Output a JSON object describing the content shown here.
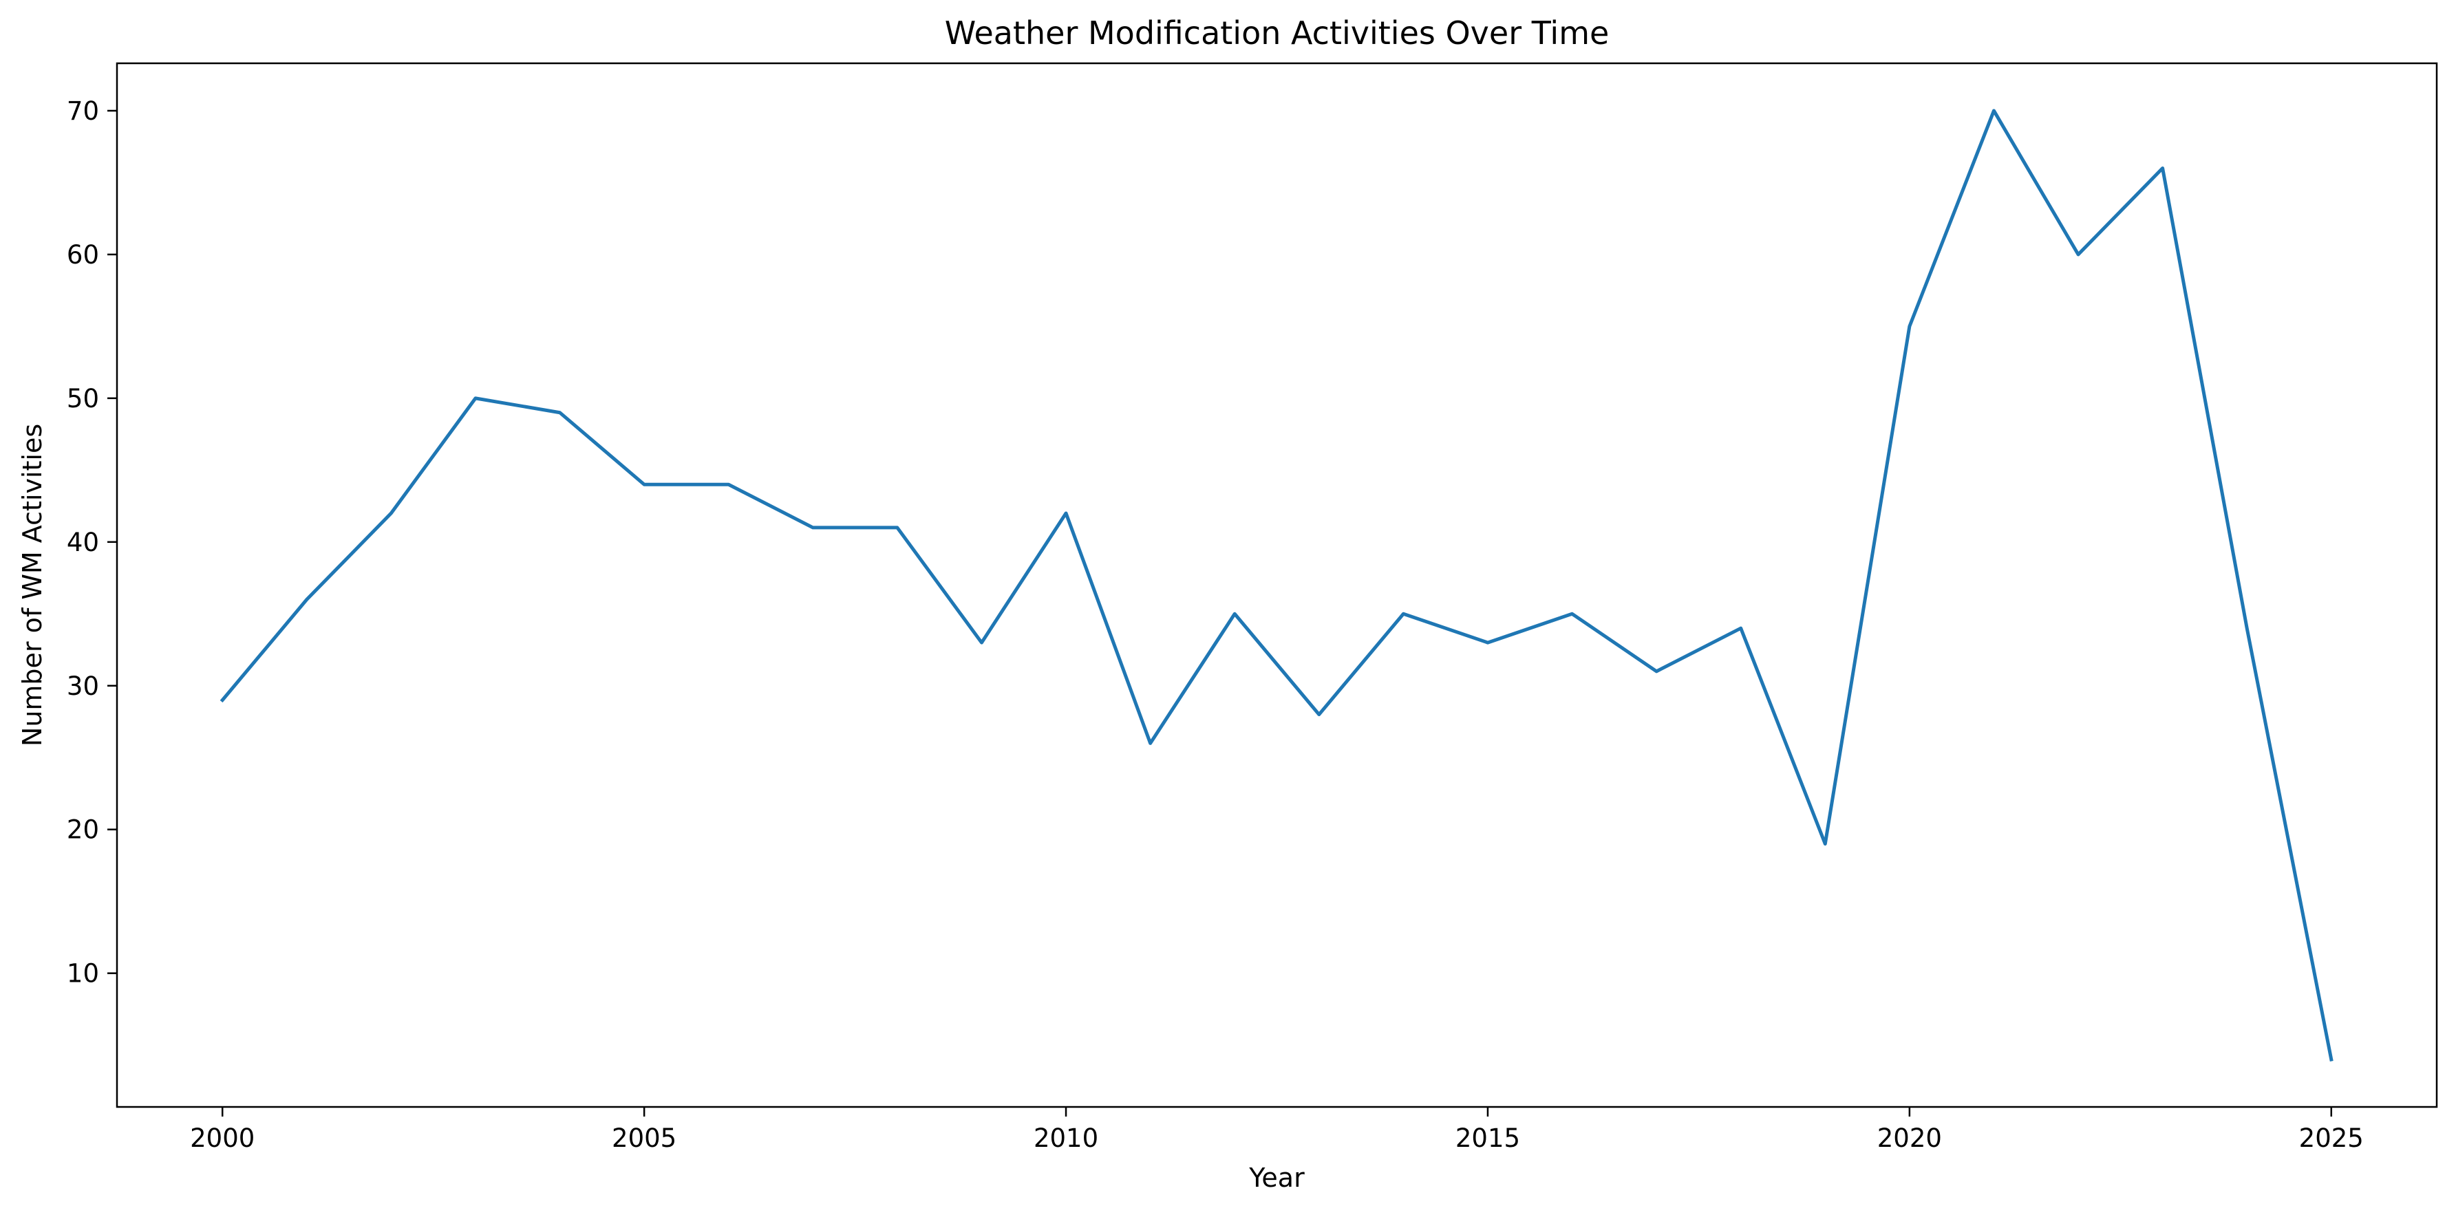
{
  "chart_data": {
    "type": "line",
    "title": "Weather Modification Activities Over Time",
    "xlabel": "Year",
    "ylabel": "Number of WM Activities",
    "x": [
      2000,
      2001,
      2002,
      2003,
      2004,
      2005,
      2006,
      2007,
      2008,
      2009,
      2010,
      2011,
      2012,
      2013,
      2014,
      2015,
      2016,
      2017,
      2018,
      2019,
      2020,
      2021,
      2022,
      2023,
      2024,
      2025
    ],
    "series": [
      {
        "name": "WM Activities",
        "color": "#1f77b4",
        "values": [
          29,
          36,
          42,
          50,
          49,
          44,
          44,
          41,
          41,
          33,
          42,
          26,
          35,
          28,
          35,
          33,
          35,
          31,
          34,
          19,
          55,
          70,
          60,
          66,
          34,
          4
        ]
      }
    ],
    "xlim": [
      1998.75,
      2026.25
    ],
    "ylim": [
      0.7,
      73.3
    ],
    "xticks": [
      2000,
      2005,
      2010,
      2015,
      2020,
      2025
    ],
    "yticks": [
      10,
      20,
      30,
      40,
      50,
      60,
      70
    ],
    "xtick_labels": [
      "2000",
      "2005",
      "2010",
      "2015",
      "2020",
      "2025"
    ],
    "ytick_labels": [
      "10",
      "20",
      "30",
      "40",
      "50",
      "60",
      "70"
    ],
    "grid": false,
    "legend": "none"
  }
}
